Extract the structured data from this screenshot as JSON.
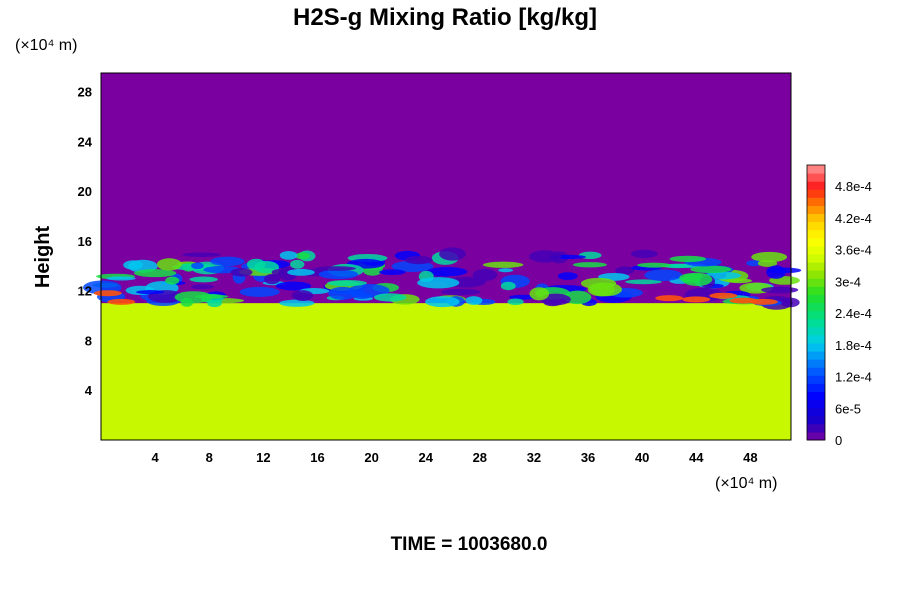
{
  "chart_data": {
    "type": "heatmap",
    "title": "H2S-g Mixing Ratio [kg/kg]",
    "ylabel": "Height",
    "xlabel": "",
    "x_unit_label": "(×10⁴ m)",
    "y_unit_label": "(×10⁴ m)",
    "x_ticks": [
      4,
      8,
      12,
      16,
      20,
      24,
      28,
      32,
      36,
      40,
      44,
      48
    ],
    "y_ticks": [
      4,
      8,
      12,
      16,
      20,
      24,
      28
    ],
    "xlim": [
      0,
      51
    ],
    "ylim": [
      0,
      29.5
    ],
    "colorbar": {
      "ticks": [
        {
          "label": "0",
          "value": 0
        },
        {
          "label": "6e-5",
          "value": 6e-05
        },
        {
          "label": "1.2e-4",
          "value": 0.00012
        },
        {
          "label": "1.8e-4",
          "value": 0.00018
        },
        {
          "label": "2.4e-4",
          "value": 0.00024
        },
        {
          "label": "3e-4",
          "value": 0.0003
        },
        {
          "label": "3.6e-4",
          "value": 0.00036
        },
        {
          "label": "4.2e-4",
          "value": 0.00042
        },
        {
          "label": "4.8e-4",
          "value": 0.00048
        }
      ],
      "range": [
        0,
        0.00052
      ],
      "levels": 34
    },
    "field": {
      "upper_value": 0,
      "lower_value": 0.00034,
      "interface_height": 11,
      "mixing_layer_top": 15
    },
    "footer": "TIME = 1003680.0"
  }
}
